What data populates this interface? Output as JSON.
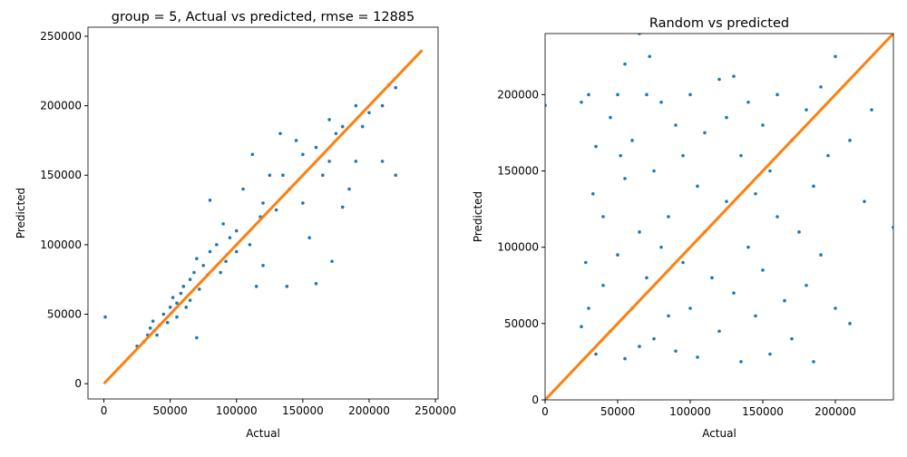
{
  "chart_data": [
    {
      "type": "scatter",
      "title": "group = 5, Actual vs predicted, rmse = 12885",
      "xlabel": "Actual",
      "ylabel": "Predicted",
      "xlim": [
        -12000,
        252000
      ],
      "ylim": [
        -11000,
        256500
      ],
      "xticks": [
        0,
        50000,
        100000,
        150000,
        200000,
        250000
      ],
      "yticks": [
        0,
        50000,
        100000,
        150000,
        200000,
        250000
      ],
      "points": {
        "color": "#1f77b4",
        "x": [
          1000,
          25000,
          30000,
          33000,
          35000,
          37000,
          38000,
          40000,
          42000,
          45000,
          48000,
          50000,
          52000,
          55000,
          55000,
          58000,
          60000,
          62000,
          65000,
          65000,
          68000,
          70000,
          70000,
          72000,
          75000,
          78000,
          80000,
          80000,
          85000,
          88000,
          90000,
          92000,
          95000,
          100000,
          100000,
          105000,
          110000,
          112000,
          115000,
          118000,
          120000,
          120000,
          125000,
          130000,
          133000,
          135000,
          138000,
          140000,
          145000,
          150000,
          150000,
          155000,
          160000,
          160000,
          165000,
          170000,
          170000,
          172000,
          175000,
          180000,
          180000,
          185000,
          190000,
          190000,
          195000,
          200000,
          210000,
          210000,
          215000,
          220000,
          220000
        ],
        "values": [
          48000,
          27000,
          30000,
          35000,
          40000,
          45000,
          38000,
          35000,
          42000,
          50000,
          44000,
          55000,
          62000,
          48000,
          58000,
          65000,
          70000,
          55000,
          75000,
          60000,
          80000,
          33000,
          90000,
          68000,
          85000,
          78000,
          132000,
          95000,
          100000,
          80000,
          115000,
          88000,
          105000,
          110000,
          95000,
          140000,
          100000,
          165000,
          70000,
          120000,
          85000,
          130000,
          150000,
          125000,
          180000,
          150000,
          70000,
          140000,
          175000,
          130000,
          165000,
          105000,
          170000,
          72000,
          150000,
          190000,
          160000,
          88000,
          180000,
          185000,
          127000,
          140000,
          200000,
          160000,
          185000,
          195000,
          200000,
          160000,
          215000,
          150000,
          213000
        ]
      },
      "line": {
        "color": "#ff7f0e",
        "x": [
          0,
          240000
        ],
        "values": [
          0,
          240000
        ]
      }
    },
    {
      "type": "scatter",
      "title": "Random vs predicted",
      "xlabel": "Actual",
      "ylabel": "Predicted",
      "xlim": [
        0,
        240000
      ],
      "ylim": [
        0,
        240000
      ],
      "xticks": [
        0,
        50000,
        100000,
        150000,
        200000
      ],
      "yticks": [
        0,
        50000,
        100000,
        150000,
        200000
      ],
      "points": {
        "color": "#1f77b4",
        "x": [
          0,
          25000,
          25000,
          28000,
          30000,
          30000,
          33000,
          35000,
          35000,
          40000,
          40000,
          45000,
          45000,
          50000,
          50000,
          52000,
          55000,
          55000,
          55000,
          60000,
          60000,
          65000,
          65000,
          65000,
          70000,
          70000,
          72000,
          75000,
          75000,
          80000,
          80000,
          85000,
          85000,
          90000,
          90000,
          95000,
          95000,
          100000,
          100000,
          105000,
          105000,
          110000,
          110000,
          115000,
          120000,
          120000,
          125000,
          125000,
          130000,
          130000,
          135000,
          135000,
          140000,
          140000,
          145000,
          145000,
          150000,
          150000,
          155000,
          155000,
          160000,
          160000,
          165000,
          170000,
          170000,
          175000,
          180000,
          180000,
          185000,
          185000,
          190000,
          190000,
          195000,
          200000,
          200000,
          210000,
          210000,
          220000,
          225000,
          240000
        ],
        "values": [
          193000,
          195000,
          48000,
          90000,
          200000,
          60000,
          135000,
          166000,
          30000,
          120000,
          75000,
          185000,
          45000,
          200000,
          95000,
          160000,
          220000,
          145000,
          27000,
          170000,
          60000,
          240000,
          110000,
          35000,
          200000,
          80000,
          225000,
          150000,
          40000,
          195000,
          100000,
          120000,
          55000,
          180000,
          32000,
          160000,
          90000,
          200000,
          60000,
          140000,
          28000,
          175000,
          110000,
          80000,
          210000,
          45000,
          185000,
          130000,
          212000,
          70000,
          160000,
          25000,
          195000,
          100000,
          135000,
          55000,
          180000,
          85000,
          150000,
          30000,
          200000,
          120000,
          65000,
          170000,
          40000,
          110000,
          190000,
          75000,
          140000,
          25000,
          205000,
          95000,
          160000,
          225000,
          60000,
          170000,
          50000,
          130000,
          190000,
          113000
        ]
      },
      "line": {
        "color": "#ff7f0e",
        "x": [
          0,
          240000
        ],
        "values": [
          0,
          240000
        ]
      }
    }
  ]
}
